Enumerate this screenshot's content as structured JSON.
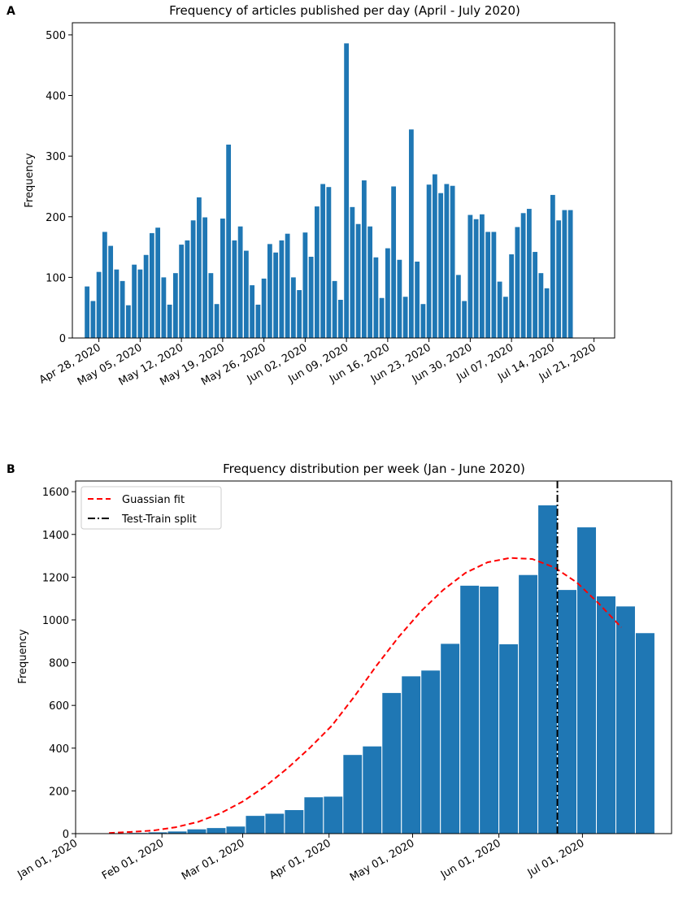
{
  "chart_data": [
    {
      "panel_label": "A",
      "type": "bar",
      "title": "Frequency of articles published per day (April - July 2020)",
      "xlabel": "",
      "ylabel": "Frequency",
      "ylim": [
        0,
        520
      ],
      "yticks": [
        0,
        100,
        200,
        300,
        400,
        500
      ],
      "x_start_date": "2020-04-26",
      "xlim_days": [
        -2.5,
        89.5
      ],
      "xtick_days": [
        2,
        9,
        16,
        23,
        30,
        37,
        44,
        51,
        58,
        65,
        72,
        79,
        86
      ],
      "xtick_labels": [
        "Apr 28, 2020",
        "May 05, 2020",
        "May 12, 2020",
        "May 19, 2020",
        "May 26, 2020",
        "Jun 02, 2020",
        "Jun 09, 2020",
        "Jun 16, 2020",
        "Jun 23, 2020",
        "Jun 30, 2020",
        "Jul 07, 2020",
        "Jul 14, 2020",
        "Jul 21, 2020"
      ],
      "values": [
        85,
        61,
        109,
        175,
        152,
        113,
        94,
        54,
        121,
        113,
        137,
        173,
        182,
        100,
        55,
        107,
        154,
        161,
        194,
        232,
        199,
        107,
        56,
        197,
        319,
        161,
        184,
        144,
        87,
        55,
        98,
        155,
        141,
        161,
        172,
        100,
        79,
        174,
        134,
        217,
        254,
        249,
        94,
        63,
        486,
        216,
        188,
        260,
        184,
        133,
        66,
        148,
        250,
        129,
        68,
        344,
        126,
        56,
        253,
        270,
        239,
        254,
        251,
        104,
        61,
        203,
        196,
        204,
        175,
        175,
        93,
        68,
        138,
        183,
        206,
        213,
        142,
        107,
        82,
        236,
        194,
        211,
        211
      ]
    },
    {
      "panel_label": "B",
      "type": "bar",
      "title": "Frequency distribution per week (Jan - June 2020)",
      "xlabel": "",
      "ylabel": "Frequency",
      "ylim": [
        0,
        1650
      ],
      "yticks": [
        0,
        200,
        400,
        600,
        800,
        1000,
        1200,
        1400,
        1600
      ],
      "x_start_date": "2020-01-01",
      "xlim_days": [
        0,
        214
      ],
      "xtick_days": [
        0,
        31,
        60,
        91,
        121,
        152,
        182
      ],
      "xtick_labels": [
        "Jan 01, 2020",
        "Feb 01, 2020",
        "Mar 01, 2020",
        "Apr 01, 2020",
        "May 01, 2020",
        "Jun 01, 2020",
        "Jul 01, 2020"
      ],
      "bar_start_day": 12,
      "bar_width_days": 7,
      "values": [
        3,
        5,
        8,
        12,
        22,
        28,
        35,
        85,
        95,
        112,
        172,
        175,
        370,
        410,
        660,
        738,
        765,
        890,
        1162,
        1158,
        888,
        1212,
        1538,
        1142,
        1435,
        1112,
        1065,
        940
      ],
      "series": [
        {
          "name": "Guassian fit",
          "style": "dashed",
          "color": "#ff0000",
          "x_days": [
            12,
            20,
            28,
            36,
            44,
            52,
            60,
            68,
            76,
            84,
            92,
            100,
            108,
            116,
            124,
            132,
            140,
            148,
            156,
            164,
            172,
            180,
            188,
            196
          ],
          "values": [
            3,
            8,
            15,
            30,
            55,
            95,
            150,
            220,
            305,
            400,
            505,
            640,
            785,
            920,
            1040,
            1140,
            1220,
            1270,
            1290,
            1285,
            1245,
            1175,
            1075,
            965
          ]
        },
        {
          "name": "Test-Train split",
          "style": "dashdot",
          "color": "#000000",
          "x_day": 173
        }
      ],
      "legend_position": "upper-left"
    }
  ]
}
